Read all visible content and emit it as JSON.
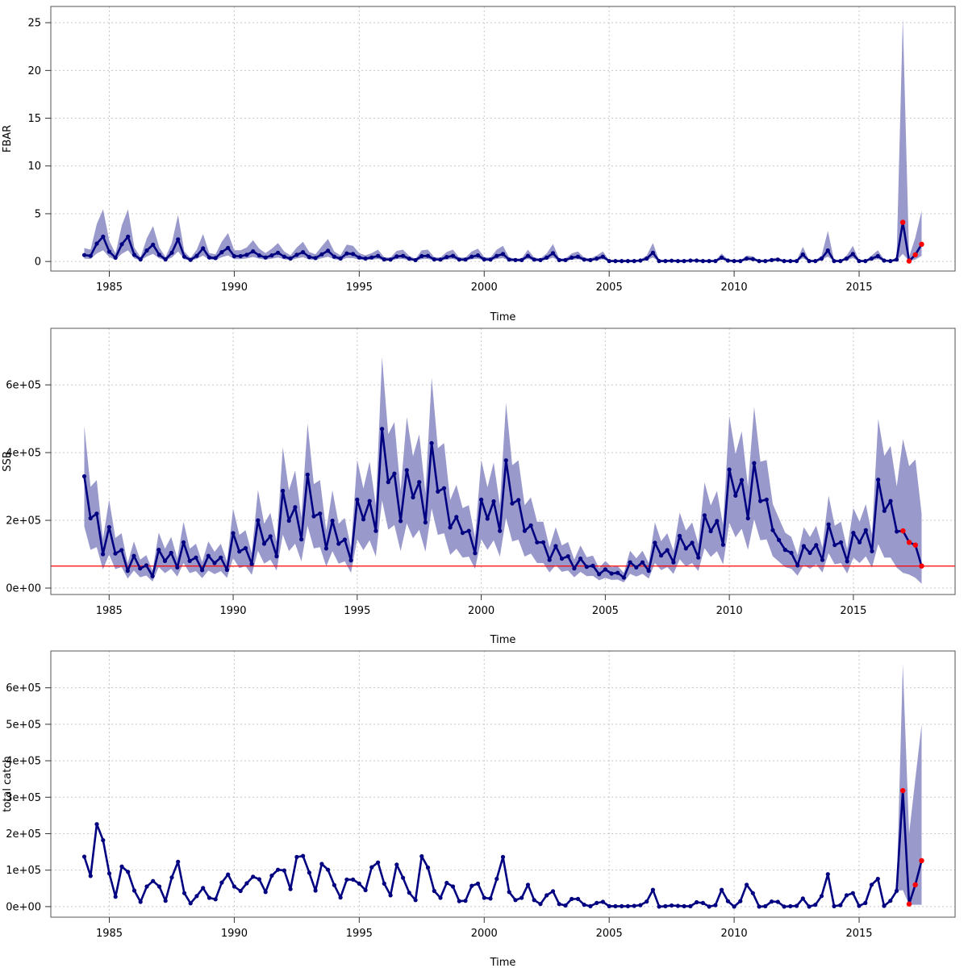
{
  "colors": {
    "line": "#000080",
    "band": "#9999cc",
    "projection": "#ff0000",
    "reference_line": "#ff0000",
    "grid": "#c8c8c8"
  },
  "chart_data": [
    {
      "type": "line",
      "ylabel": "FBAR",
      "xlabel": "Time",
      "grid": true,
      "time_start": 1984,
      "frequency": 4,
      "projection_start": 2016.75,
      "xlim": [
        1982.66,
        2018.84
      ],
      "ylim": [
        -1.0,
        26.7
      ],
      "xticks": [
        1985,
        1990,
        1995,
        2000,
        2005,
        2010,
        2015
      ],
      "xtick_labels": [
        "1985",
        "1990",
        "1995",
        "2000",
        "2005",
        "2010",
        "2015"
      ],
      "yticks": [
        0,
        5,
        10,
        15,
        20,
        25
      ],
      "ytick_labels": [
        "0",
        "5",
        "10",
        "15",
        "20",
        "25"
      ],
      "values": [
        0.67,
        0.59,
        1.87,
        2.6,
        1.03,
        0.39,
        1.8,
        2.6,
        0.7,
        0.22,
        1.15,
        1.76,
        0.7,
        0.22,
        0.92,
        2.32,
        0.5,
        0.17,
        0.59,
        1.37,
        0.42,
        0.36,
        0.98,
        1.42,
        0.56,
        0.56,
        0.7,
        1.06,
        0.64,
        0.42,
        0.64,
        0.92,
        0.5,
        0.31,
        0.7,
        0.98,
        0.47,
        0.36,
        0.75,
        1.12,
        0.5,
        0.31,
        0.84,
        0.78,
        0.42,
        0.31,
        0.42,
        0.59,
        0.22,
        0.2,
        0.53,
        0.59,
        0.28,
        0.14,
        0.56,
        0.59,
        0.22,
        0.2,
        0.47,
        0.59,
        0.2,
        0.2,
        0.5,
        0.64,
        0.22,
        0.2,
        0.59,
        0.78,
        0.2,
        0.15,
        0.15,
        0.59,
        0.2,
        0.15,
        0.4,
        0.87,
        0.15,
        0.15,
        0.4,
        0.5,
        0.2,
        0.15,
        0.3,
        0.5,
        0.05,
        0.05,
        0.05,
        0.05,
        0.05,
        0.1,
        0.3,
        0.92,
        0.05,
        0.05,
        0.08,
        0.05,
        0.05,
        0.1,
        0.1,
        0.05,
        0.05,
        0.05,
        0.4,
        0.1,
        0.05,
        0.05,
        0.3,
        0.25,
        0.05,
        0.05,
        0.15,
        0.2,
        0.05,
        0.05,
        0.05,
        0.73,
        0.05,
        0.05,
        0.3,
        1.15,
        0.05,
        0.05,
        0.3,
        0.78,
        0.05,
        0.05,
        0.3,
        0.56,
        0.1,
        0.05,
        0.2,
        4.1,
        0.05,
        0.7,
        1.8
      ],
      "ci_start": 1984,
      "ci_upper": [
        1.41,
        1.24,
        3.93,
        5.46,
        2.16,
        0.82,
        3.78,
        5.46,
        1.47,
        0.46,
        2.42,
        3.7,
        1.47,
        0.46,
        1.93,
        4.87,
        1.05,
        0.36,
        1.24,
        2.88,
        0.88,
        0.76,
        2.06,
        2.98,
        1.18,
        1.18,
        1.47,
        2.23,
        1.34,
        0.88,
        1.34,
        1.93,
        1.05,
        0.65,
        1.47,
        2.06,
        0.99,
        0.76,
        1.58,
        2.35,
        1.05,
        0.65,
        1.76,
        1.64,
        0.88,
        0.65,
        0.88,
        1.24,
        0.46,
        0.42,
        1.11,
        1.24,
        0.59,
        0.29,
        1.18,
        1.24,
        0.46,
        0.42,
        0.99,
        1.24,
        0.42,
        0.42,
        1.05,
        1.34,
        0.46,
        0.42,
        1.24,
        1.64,
        0.42,
        0.32,
        0.32,
        1.24,
        0.42,
        0.32,
        0.84,
        1.83,
        0.32,
        0.32,
        0.84,
        1.05,
        0.42,
        0.32,
        0.63,
        1.05,
        0.11,
        0.11,
        0.11,
        0.11,
        0.11,
        0.21,
        0.63,
        1.93,
        0.11,
        0.11,
        0.17,
        0.11,
        0.11,
        0.21,
        0.21,
        0.11,
        0.11,
        0.11,
        0.84,
        0.21,
        0.11,
        0.11,
        0.63,
        0.53,
        0.11,
        0.11,
        0.32,
        0.42,
        0.11,
        0.11,
        0.11,
        1.53,
        0.11,
        0.11,
        0.63,
        3.2,
        0.11,
        0.11,
        0.63,
        1.64,
        0.11,
        0.11,
        0.63,
        1.18,
        0.21,
        0.11,
        0.42,
        25.5,
        0.5,
        2.5,
        5.3
      ],
      "ci_lower": [
        0.3,
        0.27,
        0.84,
        1.17,
        0.46,
        0.18,
        0.81,
        1.17,
        0.32,
        0.1,
        0.52,
        0.79,
        0.32,
        0.1,
        0.41,
        1.04,
        0.23,
        0.08,
        0.27,
        0.62,
        0.19,
        0.16,
        0.44,
        0.64,
        0.25,
        0.25,
        0.32,
        0.48,
        0.29,
        0.19,
        0.29,
        0.41,
        0.23,
        0.14,
        0.32,
        0.44,
        0.21,
        0.16,
        0.34,
        0.5,
        0.23,
        0.14,
        0.38,
        0.35,
        0.19,
        0.14,
        0.19,
        0.27,
        0.1,
        0.09,
        0.24,
        0.27,
        0.13,
        0.06,
        0.25,
        0.27,
        0.1,
        0.09,
        0.21,
        0.27,
        0.09,
        0.09,
        0.23,
        0.29,
        0.1,
        0.09,
        0.27,
        0.35,
        0.09,
        0.07,
        0.07,
        0.27,
        0.09,
        0.07,
        0.18,
        0.39,
        0.07,
        0.07,
        0.18,
        0.23,
        0.09,
        0.07,
        0.14,
        0.23,
        0.02,
        0.02,
        0.02,
        0.02,
        0.02,
        0.05,
        0.14,
        0.41,
        0.02,
        0.02,
        0.04,
        0.02,
        0.02,
        0.05,
        0.05,
        0.02,
        0.02,
        0.02,
        0.18,
        0.05,
        0.02,
        0.02,
        0.14,
        0.11,
        0.02,
        0.02,
        0.07,
        0.09,
        0.02,
        0.02,
        0.02,
        0.33,
        0.02,
        0.02,
        0.14,
        0.52,
        0.02,
        0.02,
        0.14,
        0.35,
        0.02,
        0.02,
        0.14,
        0.25,
        0.05,
        0.02,
        0.09,
        0.8,
        0.02,
        0.2,
        0.6
      ]
    },
    {
      "type": "line",
      "ylabel": "SSB",
      "xlabel": "Time",
      "grid": true,
      "time_start": 1984,
      "frequency": 4,
      "projection_start": 2017,
      "reference_line": 65000,
      "xlim": [
        1982.65,
        2019.1
      ],
      "ylim": [
        -19000,
        767000
      ],
      "xticks": [
        1985,
        1990,
        1995,
        2000,
        2005,
        2010,
        2015
      ],
      "xtick_labels": [
        "1985",
        "1990",
        "1995",
        "2000",
        "2005",
        "2010",
        "2015"
      ],
      "yticks": [
        0,
        200000,
        400000,
        600000
      ],
      "ytick_labels": [
        "0e+00",
        "2e+05",
        "4e+05",
        "6e+05"
      ],
      "values": [
        330000.0,
        206000.0,
        220000.0,
        100000.0,
        180000.0,
        102000.0,
        112000.0,
        51000.0,
        95000.0,
        58000.0,
        67000.0,
        35000.0,
        113000.0,
        80000.0,
        104000.0,
        61000.0,
        135000.0,
        80000.0,
        90000.0,
        53000.0,
        95000.0,
        74000.0,
        90000.0,
        54000.0,
        162000.0,
        108000.0,
        118000.0,
        71000.0,
        200000.0,
        131000.0,
        153000.0,
        94000.0,
        287000.0,
        199000.0,
        239000.0,
        144000.0,
        335000.0,
        212000.0,
        220000.0,
        117000.0,
        199000.0,
        131000.0,
        143000.0,
        82000.0,
        261000.0,
        203000.0,
        257000.0,
        169000.0,
        470000.0,
        313000.0,
        338000.0,
        198000.0,
        348000.0,
        268000.0,
        313000.0,
        194000.0,
        428000.0,
        285000.0,
        295000.0,
        179000.0,
        210000.0,
        163000.0,
        169000.0,
        103000.0,
        261000.0,
        205000.0,
        256000.0,
        169000.0,
        377000.0,
        250000.0,
        260000.0,
        169000.0,
        185000.0,
        135000.0,
        135000.0,
        83000.0,
        124000.0,
        87000.0,
        94000.0,
        58000.0,
        87000.0,
        63000.0,
        66000.0,
        41000.0,
        55000.0,
        43000.0,
        45000.0,
        31000.0,
        76000.0,
        61000.0,
        76000.0,
        51000.0,
        134000.0,
        96000.0,
        112000.0,
        76000.0,
        154000.0,
        117000.0,
        134000.0,
        90000.0,
        215000.0,
        168000.0,
        198000.0,
        128000.0,
        350000.0,
        273000.0,
        319000.0,
        206000.0,
        369000.0,
        257000.0,
        261000.0,
        171000.0,
        142000.0,
        113000.0,
        104000.0,
        67000.0,
        124000.0,
        104000.0,
        127000.0,
        83000.0,
        188000.0,
        127000.0,
        135000.0,
        79000.0,
        163000.0,
        135000.0,
        171000.0,
        109000.0,
        320000.0,
        228000.0,
        257000.0,
        167000.0,
        169000.0,
        135000.0,
        127000.0,
        65000.0
      ],
      "ci_start": 1984,
      "ci_upper": [
        479000.0,
        299000.0,
        319000.0,
        145000.0,
        261000.0,
        148000.0,
        162000.0,
        74000.0,
        138000.0,
        84000.0,
        97000.0,
        51000.0,
        164000.0,
        116000.0,
        151000.0,
        88000.0,
        196000.0,
        116000.0,
        131000.0,
        77000.0,
        138000.0,
        107000.0,
        131000.0,
        78000.0,
        235000.0,
        157000.0,
        171000.0,
        103000.0,
        290000.0,
        190000.0,
        222000.0,
        136000.0,
        416000.0,
        289000.0,
        347000.0,
        209000.0,
        486000.0,
        307000.0,
        319000.0,
        170000.0,
        289000.0,
        190000.0,
        207000.0,
        119000.0,
        378000.0,
        294000.0,
        373000.0,
        245000.0,
        682000.0,
        454000.0,
        490000.0,
        287000.0,
        505000.0,
        389000.0,
        454000.0,
        281000.0,
        621000.0,
        413000.0,
        428000.0,
        260000.0,
        305000.0,
        236000.0,
        245000.0,
        149000.0,
        378000.0,
        297000.0,
        371000.0,
        245000.0,
        547000.0,
        363000.0,
        377000.0,
        245000.0,
        268000.0,
        196000.0,
        196000.0,
        120000.0,
        180000.0,
        126000.0,
        136000.0,
        84000.0,
        126000.0,
        91000.0,
        96000.0,
        59000.0,
        80000.0,
        62000.0,
        65000.0,
        45000.0,
        110000.0,
        88000.0,
        110000.0,
        74000.0,
        194000.0,
        139000.0,
        162000.0,
        110000.0,
        223000.0,
        170000.0,
        194000.0,
        131000.0,
        312000.0,
        244000.0,
        287000.0,
        186000.0,
        508000.0,
        396000.0,
        463000.0,
        299000.0,
        535000.0,
        373000.0,
        378000.0,
        248000.0,
        206000.0,
        164000.0,
        151000.0,
        97000.0,
        180000.0,
        151000.0,
        184000.0,
        120000.0,
        273000.0,
        184000.0,
        196000.0,
        115000.0,
        236000.0,
        196000.0,
        248000.0,
        158000.0,
        500000.0,
        390000.0,
        420000.0,
        300000.0,
        440000.0,
        360000.0,
        380000.0,
        220000.0
      ],
      "ci_lower": [
        182000.0,
        113000.0,
        121000.0,
        55000.0,
        99000.0,
        56000.0,
        62000.0,
        28000.0,
        52000.0,
        32000.0,
        37000.0,
        19000.0,
        62000.0,
        44000.0,
        57000.0,
        34000.0,
        74000.0,
        44000.0,
        50000.0,
        29000.0,
        52000.0,
        41000.0,
        50000.0,
        30000.0,
        89000.0,
        59000.0,
        65000.0,
        39000.0,
        110000.0,
        72000.0,
        84000.0,
        52000.0,
        158000.0,
        109000.0,
        131000.0,
        79000.0,
        184000.0,
        117000.0,
        121000.0,
        64000.0,
        109000.0,
        72000.0,
        79000.0,
        45000.0,
        144000.0,
        112000.0,
        141000.0,
        93000.0,
        259000.0,
        172000.0,
        186000.0,
        109000.0,
        191000.0,
        147000.0,
        172000.0,
        107000.0,
        235000.0,
        157000.0,
        162000.0,
        98000.0,
        116000.0,
        90000.0,
        93000.0,
        57000.0,
        144000.0,
        113000.0,
        141000.0,
        93000.0,
        207000.0,
        138000.0,
        143000.0,
        93000.0,
        102000.0,
        74000.0,
        74000.0,
        46000.0,
        68000.0,
        48000.0,
        52000.0,
        32000.0,
        48000.0,
        35000.0,
        36000.0,
        23000.0,
        30000.0,
        24000.0,
        25000.0,
        17000.0,
        42000.0,
        34000.0,
        42000.0,
        28000.0,
        74000.0,
        53000.0,
        62000.0,
        42000.0,
        85000.0,
        64000.0,
        74000.0,
        50000.0,
        118000.0,
        92000.0,
        109000.0,
        70000.0,
        193000.0,
        150000.0,
        175000.0,
        113000.0,
        203000.0,
        141000.0,
        144000.0,
        94000.0,
        78000.0,
        62000.0,
        57000.0,
        37000.0,
        68000.0,
        57000.0,
        70000.0,
        46000.0,
        103000.0,
        70000.0,
        74000.0,
        43000.0,
        90000.0,
        74000.0,
        94000.0,
        60000.0,
        130000.0,
        90000.0,
        90000.0,
        60000.0,
        45000.0,
        40000.0,
        30000.0,
        13000.0
      ]
    },
    {
      "type": "line",
      "ylabel": "total catch",
      "xlabel": "Time",
      "grid": true,
      "time_start": 1984,
      "frequency": 4,
      "projection_start": 2016.75,
      "xlim": [
        1982.66,
        2018.84
      ],
      "ylim": [
        -29000,
        701000
      ],
      "xticks": [
        1985,
        1990,
        1995,
        2000,
        2005,
        2010,
        2015
      ],
      "xtick_labels": [
        "1985",
        "1990",
        "1995",
        "2000",
        "2005",
        "2010",
        "2015"
      ],
      "yticks": [
        0,
        100000,
        200000,
        300000,
        400000,
        500000,
        600000
      ],
      "ytick_labels": [
        "0e+00",
        "1e+05",
        "2e+05",
        "3e+05",
        "4e+05",
        "5e+05",
        "6e+05"
      ],
      "values": [
        137000.0,
        84000.0,
        226000.0,
        182000.0,
        91000.0,
        27000.0,
        110000.0,
        95000.0,
        44000.0,
        13000.0,
        55000.0,
        70000.0,
        55000.0,
        16000.0,
        80000.0,
        123000.0,
        37000.0,
        9000.0,
        29000.0,
        51000.0,
        24000.0,
        20000.0,
        66000.0,
        88000.0,
        55000.0,
        43000.0,
        64000.0,
        82000.0,
        75000.0,
        40000.0,
        85000.0,
        101000.0,
        99000.0,
        48000.0,
        136000.0,
        139000.0,
        93000.0,
        44000.0,
        117000.0,
        101000.0,
        59000.0,
        25000.0,
        74000.0,
        74000.0,
        63000.0,
        45000.0,
        108000.0,
        121000.0,
        63000.0,
        31000.0,
        115000.0,
        79000.0,
        38000.0,
        18000.0,
        138000.0,
        107000.0,
        43000.0,
        24000.0,
        65000.0,
        55000.0,
        15000.0,
        16000.0,
        57000.0,
        63000.0,
        24000.0,
        22000.0,
        76000.0,
        136000.0,
        40000.0,
        18000.0,
        24000.0,
        60000.0,
        18000.0,
        7000.0,
        31000.0,
        42000.0,
        7000.0,
        3000.0,
        21000.0,
        21000.0,
        5000.0,
        1000.0,
        10000.0,
        13000.0,
        1000.0,
        1000.0,
        1000.0,
        1000.0,
        2000.0,
        4000.0,
        14000.0,
        46000.0,
        0,
        1000.0,
        3000.0,
        2000.0,
        1000.0,
        1000.0,
        12000.0,
        10000.0,
        0,
        4000.0,
        46000.0,
        15000.0,
        0,
        15000.0,
        60000.0,
        37000.0,
        0,
        1000.0,
        14000.0,
        13000.0,
        0,
        1000.0,
        2000.0,
        22000.0,
        0,
        5000.0,
        29000.0,
        89000.0,
        1000.0,
        4000.0,
        31000.0,
        37000.0,
        2000.0,
        10000.0,
        60000.0,
        76000.0,
        2000.0,
        16000.0,
        43000.0,
        318000.0,
        7000.0,
        60000.0,
        126000.0
      ],
      "ci_start": 2016.5,
      "ci_upper": [
        43000.0,
        665000.0,
        200000.0,
        350000.0,
        500000.0
      ],
      "ci_lower": [
        43000.0,
        45000.0,
        5000.0,
        5000.0,
        5000.0
      ]
    }
  ]
}
